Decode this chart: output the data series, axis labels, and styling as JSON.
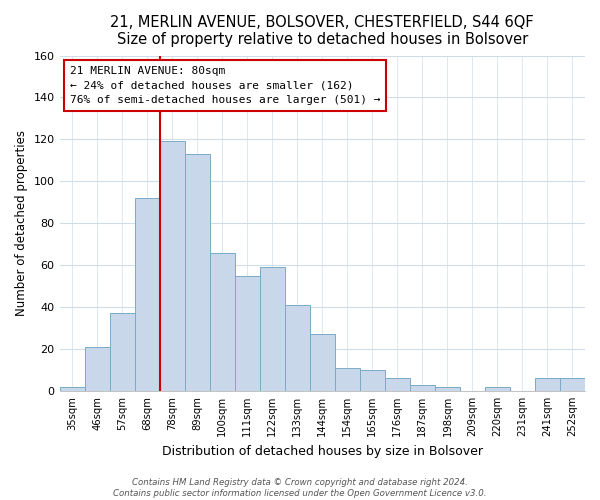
{
  "title": "21, MERLIN AVENUE, BOLSOVER, CHESTERFIELD, S44 6QF",
  "subtitle": "Size of property relative to detached houses in Bolsover",
  "xlabel": "Distribution of detached houses by size in Bolsover",
  "ylabel": "Number of detached properties",
  "bar_labels": [
    "35sqm",
    "46sqm",
    "57sqm",
    "68sqm",
    "78sqm",
    "89sqm",
    "100sqm",
    "111sqm",
    "122sqm",
    "133sqm",
    "144sqm",
    "154sqm",
    "165sqm",
    "176sqm",
    "187sqm",
    "198sqm",
    "209sqm",
    "220sqm",
    "231sqm",
    "241sqm",
    "252sqm"
  ],
  "bar_values": [
    2,
    21,
    37,
    92,
    119,
    113,
    66,
    55,
    59,
    41,
    27,
    11,
    10,
    6,
    3,
    2,
    0,
    2,
    0,
    6,
    6
  ],
  "bar_color": "#c8d8ea",
  "bar_edge_color": "#7aaac8",
  "vline_color": "#cc0000",
  "annotation_title": "21 MERLIN AVENUE: 80sqm",
  "annotation_line1": "← 24% of detached houses are smaller (162)",
  "annotation_line2": "76% of semi-detached houses are larger (501) →",
  "annotation_box_color": "#ffffff",
  "annotation_box_edge": "#cc0000",
  "ylim": [
    0,
    160
  ],
  "yticks": [
    0,
    20,
    40,
    60,
    80,
    100,
    120,
    140,
    160
  ],
  "footer_line1": "Contains HM Land Registry data © Crown copyright and database right 2024.",
  "footer_line2": "Contains public sector information licensed under the Open Government Licence v3.0.",
  "bg_color": "#ffffff",
  "plot_bg_color": "#ffffff",
  "grid_color": "#d0dce8",
  "title_fontsize": 10.5,
  "subtitle_fontsize": 9.5
}
